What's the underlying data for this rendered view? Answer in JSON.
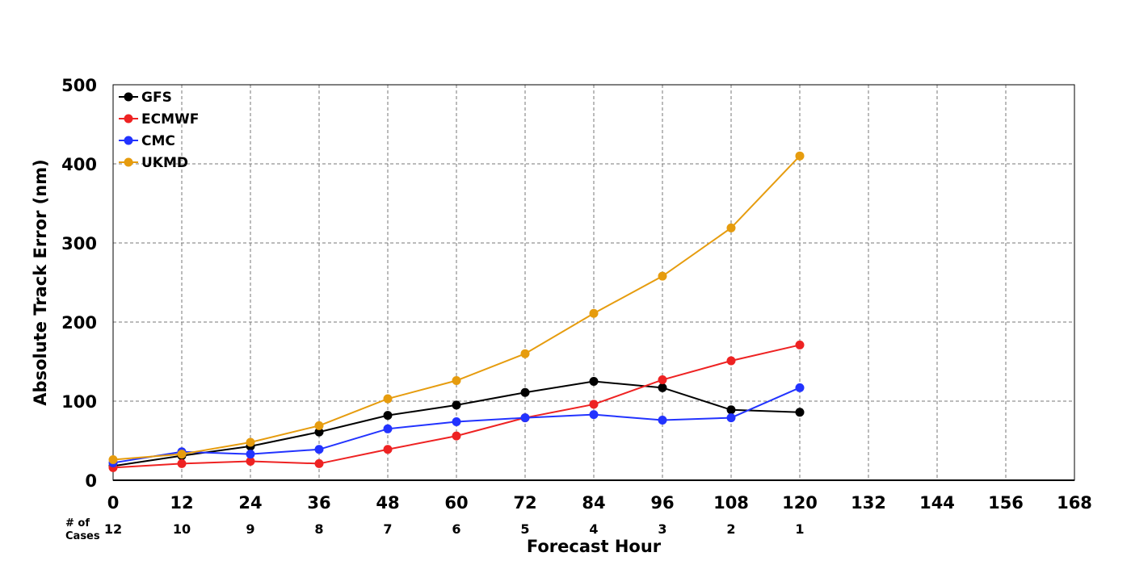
{
  "chart_data": {
    "type": "line",
    "title": "",
    "xlabel": "Forecast Hour",
    "ylabel": "Absolute Track Error (nm)",
    "xlim": [
      0,
      168
    ],
    "ylim": [
      0,
      500
    ],
    "grid": true,
    "legend_position": "top-left",
    "x_ticks": [
      "0",
      "12",
      "24",
      "36",
      "48",
      "60",
      "72",
      "84",
      "96",
      "108",
      "120",
      "132",
      "144",
      "156",
      "168"
    ],
    "y_ticks": [
      "0",
      "100",
      "200",
      "300",
      "400",
      "500"
    ],
    "cases_title": [
      "# of",
      "Cases"
    ],
    "cases": [
      "12",
      "10",
      "9",
      "8",
      "7",
      "6",
      "5",
      "4",
      "3",
      "2",
      "1"
    ],
    "x": [
      0,
      12,
      24,
      36,
      48,
      60,
      72,
      84,
      96,
      108,
      120
    ],
    "series": [
      {
        "name": "GFS",
        "color": "#000000",
        "values": [
          18,
          31,
          43,
          61,
          82,
          95,
          111,
          125,
          117,
          89,
          86
        ]
      },
      {
        "name": "ECMWF",
        "color": "#ee2222",
        "values": [
          16,
          21,
          24,
          21,
          39,
          56,
          79,
          96,
          127,
          151,
          171
        ]
      },
      {
        "name": "CMC",
        "color": "#2233ff",
        "values": [
          22,
          36,
          33,
          39,
          65,
          74,
          79,
          83,
          76,
          79,
          117
        ]
      },
      {
        "name": "UKMD",
        "color": "#e69c0e",
        "values": [
          26,
          33,
          48,
          69,
          103,
          126,
          160,
          211,
          258,
          319,
          410
        ]
      }
    ]
  }
}
